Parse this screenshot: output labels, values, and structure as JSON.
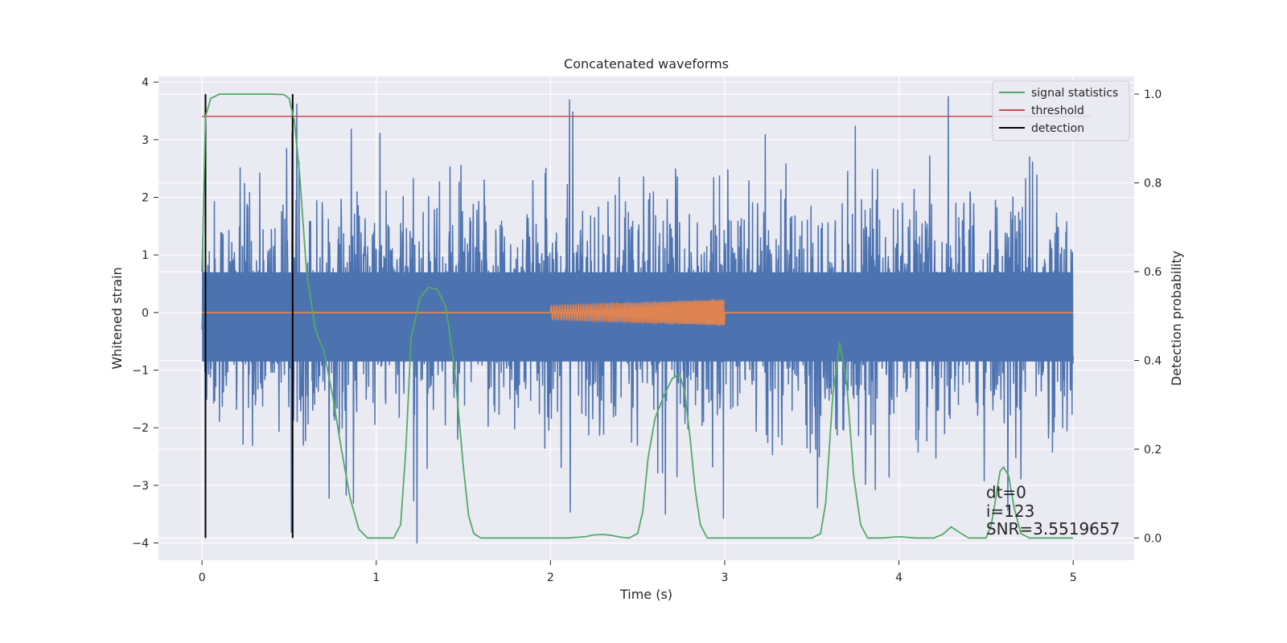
{
  "chart_data": {
    "type": "line",
    "title": "Concatenated waveforms",
    "xlabel": "Time (s)",
    "ylabel": "Whitened strain",
    "ylabel_right": "Detection probability",
    "xlim": [
      -0.25,
      5.35
    ],
    "ylim": [
      -4.3,
      4.1
    ],
    "ylim_right": [
      -0.05,
      1.04
    ],
    "x_ticks": [
      0,
      1,
      2,
      3,
      4,
      5
    ],
    "x_tick_labels": [
      "0",
      "1",
      "2",
      "3",
      "4",
      "5"
    ],
    "y_ticks": [
      -4,
      -3,
      -2,
      -1,
      0,
      1,
      2,
      3,
      4
    ],
    "y_tick_labels": [
      "−4",
      "−3",
      "−2",
      "−1",
      "0",
      "1",
      "2",
      "3",
      "4"
    ],
    "y_right_ticks": [
      0.0,
      0.2,
      0.4,
      0.6,
      0.8,
      1.0
    ],
    "y_right_tick_labels": [
      "0.0",
      "0.2",
      "0.4",
      "0.6",
      "0.8",
      "1.0"
    ],
    "grid": true,
    "legend_position": "top-right",
    "colors": {
      "strain": "#4c72b0",
      "injected_waveform": "#dd8452",
      "signal_statistics": "#55a868",
      "threshold": "#c44e52",
      "detection": "#000000",
      "plot_background": "#eaeaf2",
      "grid": "#ffffff"
    },
    "series": [
      {
        "name": "signal statistics",
        "axis": "right",
        "x": [
          0.0,
          0.02,
          0.05,
          0.1,
          0.2,
          0.3,
          0.4,
          0.47,
          0.5,
          0.53,
          0.56,
          0.6,
          0.65,
          0.7,
          0.75,
          0.8,
          0.85,
          0.9,
          0.95,
          1.0,
          1.05,
          1.1,
          1.14,
          1.17,
          1.2,
          1.25,
          1.3,
          1.35,
          1.4,
          1.45,
          1.5,
          1.53,
          1.56,
          1.6,
          1.7,
          1.8,
          1.9,
          2.0,
          2.1,
          2.2,
          2.25,
          2.3,
          2.35,
          2.4,
          2.45,
          2.5,
          2.53,
          2.56,
          2.6,
          2.65,
          2.7,
          2.74,
          2.77,
          2.8,
          2.83,
          2.86,
          2.9,
          3.0,
          3.2,
          3.4,
          3.5,
          3.55,
          3.58,
          3.62,
          3.66,
          3.7,
          3.74,
          3.78,
          3.82,
          3.86,
          3.9,
          4.0,
          4.1,
          4.2,
          4.25,
          4.3,
          4.35,
          4.4,
          4.45,
          4.5,
          4.53,
          4.56,
          4.58,
          4.6,
          4.63,
          4.66,
          4.7,
          4.75,
          4.8,
          4.9,
          5.0
        ],
        "y": [
          0.6,
          0.95,
          0.99,
          1.0,
          1.0,
          1.0,
          1.0,
          0.999,
          0.99,
          0.94,
          0.82,
          0.6,
          0.47,
          0.42,
          0.32,
          0.2,
          0.09,
          0.02,
          0.0,
          0.0,
          0.0,
          0.0,
          0.03,
          0.2,
          0.45,
          0.54,
          0.565,
          0.56,
          0.52,
          0.38,
          0.16,
          0.05,
          0.01,
          0.0,
          0.0,
          0.0,
          0.0,
          0.0,
          0.0,
          0.003,
          0.007,
          0.008,
          0.006,
          0.002,
          0.0,
          0.01,
          0.06,
          0.18,
          0.27,
          0.32,
          0.36,
          0.37,
          0.33,
          0.23,
          0.11,
          0.03,
          0.0,
          0.0,
          0.0,
          0.0,
          0.0,
          0.01,
          0.08,
          0.32,
          0.44,
          0.35,
          0.14,
          0.03,
          0.0,
          0.0,
          0.0,
          0.003,
          0.0,
          0.0,
          0.008,
          0.025,
          0.012,
          0.0,
          0.0,
          0.0,
          0.03,
          0.1,
          0.15,
          0.16,
          0.14,
          0.07,
          0.01,
          0.0,
          0.0,
          0.0,
          0.0
        ]
      },
      {
        "name": "threshold",
        "axis": "right",
        "x": [
          0.0,
          5.0
        ],
        "y": [
          0.95,
          0.95
        ]
      },
      {
        "name": "detection",
        "axis": "right",
        "x": [
          0.02,
          0.52
        ],
        "y_range": [
          0.0,
          1.0
        ]
      },
      {
        "axis": "left",
        "kind": "noise",
        "x_range": [
          0.0,
          5.0
        ],
        "min": -4.0,
        "max": 3.75,
        "band": [
          -0.85,
          0.7
        ]
      },
      {
        "axis": "left",
        "kind": "chirp",
        "x": [
          0.0,
          5.0
        ],
        "y": [
          0.0,
          0.0
        ],
        "chirp_x_range": [
          2.0,
          3.0
        ],
        "amplitude_range": [
          0.12,
          0.22
        ]
      }
    ],
    "annotations": [
      {
        "text": "dt=0",
        "x": 4.5,
        "y": 0.09
      },
      {
        "text": "i=123",
        "x": 4.5,
        "y": 0.048
      },
      {
        "text": "SNR=3.5519657",
        "x": 4.5,
        "y": 0.008
      }
    ]
  }
}
